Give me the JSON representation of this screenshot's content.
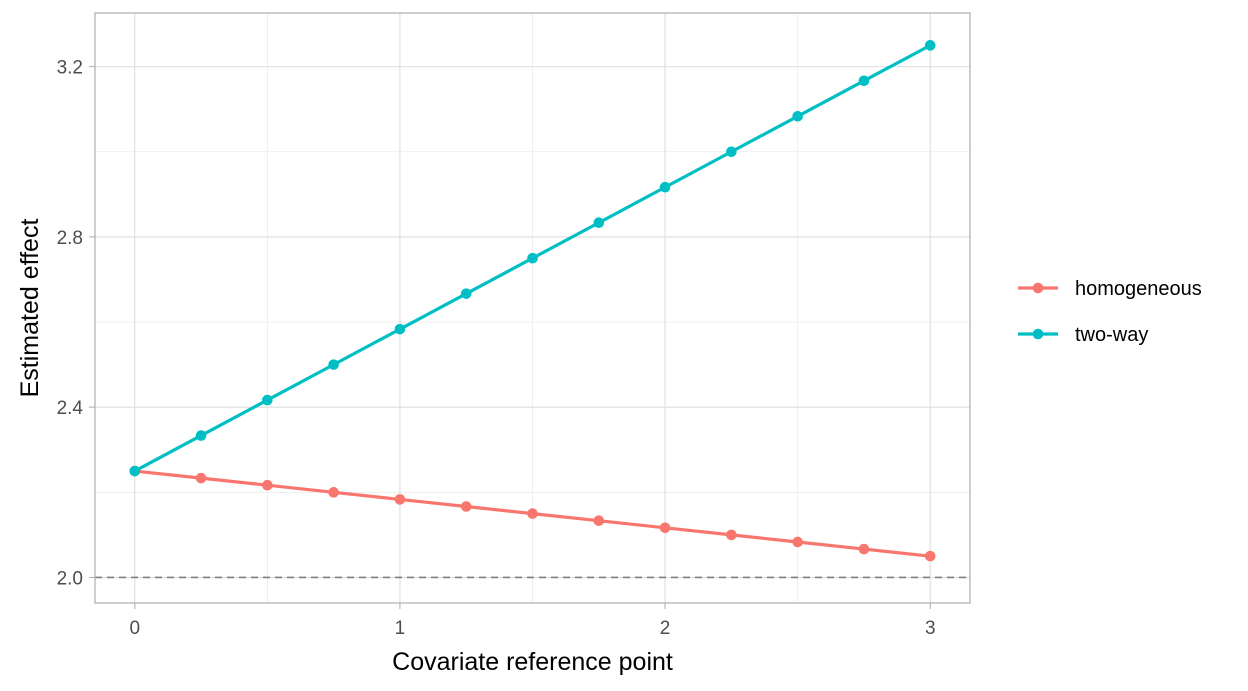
{
  "chart_data": {
    "type": "line",
    "title": "",
    "xlabel": "Covariate reference point",
    "ylabel": "Estimated effect",
    "x": [
      0,
      0.25,
      0.5,
      0.75,
      1,
      1.25,
      1.5,
      1.75,
      2,
      2.25,
      2.5,
      2.75,
      3
    ],
    "series": [
      {
        "name": "homogeneous",
        "color": "#F8766D",
        "values": [
          2.25,
          2.2333,
          2.2167,
          2.2,
          2.1833,
          2.1667,
          2.15,
          2.1333,
          2.1167,
          2.1,
          2.0833,
          2.0667,
          2.05
        ]
      },
      {
        "name": "two-way",
        "color": "#00BFC4",
        "values": [
          2.25,
          2.3333,
          2.4167,
          2.5,
          2.5833,
          2.6667,
          2.75,
          2.8333,
          2.9167,
          3.0,
          3.0833,
          3.1667,
          3.25
        ]
      }
    ],
    "xlim": [
      -0.15,
      3.15
    ],
    "ylim": [
      1.94,
      3.326
    ],
    "x_ticks": [
      0,
      1,
      2,
      3
    ],
    "x_minor_ticks": [
      0.5,
      1.5,
      2.5
    ],
    "y_ticks": [
      2.0,
      2.4,
      2.8,
      3.2
    ],
    "y_tick_labels": [
      "2.0",
      "2.4",
      "2.8",
      "3.2"
    ],
    "y_minor_ticks": [
      2.2,
      2.6,
      3.0
    ],
    "reference_line": {
      "y": 2.0,
      "style": "dashed",
      "color": "#7f7f7f"
    },
    "grid": true,
    "legend_position": "right"
  }
}
